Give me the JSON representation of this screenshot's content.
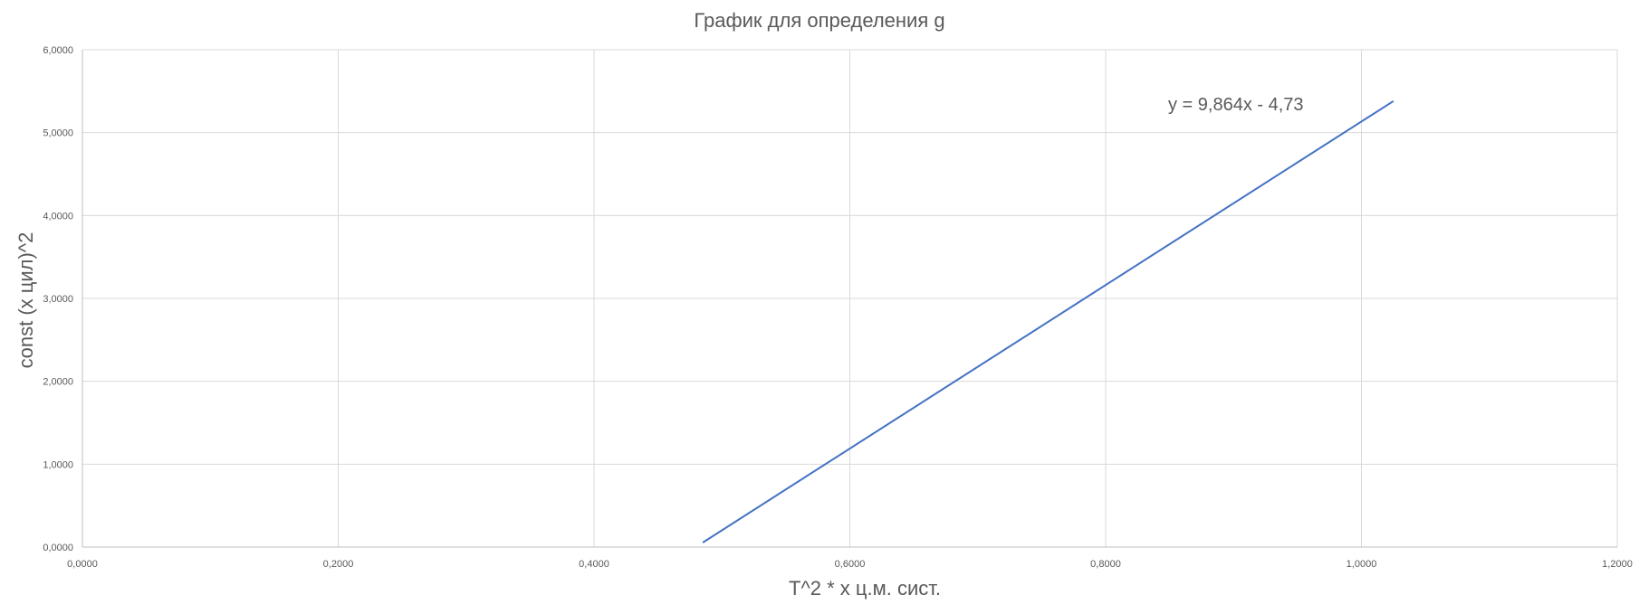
{
  "chart_data": {
    "type": "line",
    "title": "График для определения g",
    "xlabel": "T^2 *  x  ц.м. сист.",
    "ylabel": "const (x цил)^2",
    "xlim": [
      0,
      1.2
    ],
    "ylim": [
      0,
      6
    ],
    "x_ticks": [
      "0,0000",
      "0,2000",
      "0,4000",
      "0,6000",
      "0,8000",
      "1,0000",
      "1,2000"
    ],
    "y_ticks": [
      "0,0000",
      "1,0000",
      "2,0000",
      "3,0000",
      "4,0000",
      "5,0000",
      "6,0000"
    ],
    "grid": true,
    "series": [
      {
        "x": [
          0.485,
          1.025
        ],
        "y": [
          0.054,
          5.38
        ],
        "color": "#4472c4"
      }
    ],
    "trendline_label": "y = 9,864x - 4,73"
  }
}
